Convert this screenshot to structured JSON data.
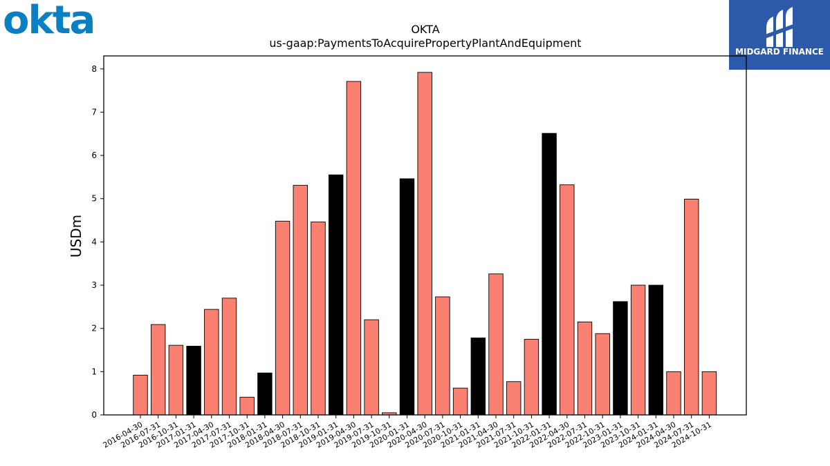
{
  "logos": {
    "left_text": "okta",
    "right_text": "MIDGARD FINANCE"
  },
  "colors": {
    "bar_default": "#fa8072",
    "bar_highlight": "#000000",
    "logo_left": "#0a7fc2",
    "logo_right_bg": "#2c5aa8"
  },
  "chart_data": {
    "type": "bar",
    "title": "OKTA",
    "subtitle": "us-gaap:PaymentsToAcquirePropertyPlantAndEquipment",
    "xlabel": "",
    "ylabel": "USDm",
    "ylim": [
      0,
      8.3
    ],
    "yticks": [
      0,
      1,
      2,
      3,
      4,
      5,
      6,
      7,
      8
    ],
    "grid": false,
    "categories": [
      "2016-04-30",
      "2016-07-31",
      "2016-10-31",
      "2017-01-31",
      "2017-04-30",
      "2017-07-31",
      "2017-10-31",
      "2018-01-31",
      "2018-04-30",
      "2018-07-31",
      "2018-10-31",
      "2019-01-31",
      "2019-04-30",
      "2019-07-31",
      "2019-10-31",
      "2020-01-31",
      "2020-04-30",
      "2020-07-31",
      "2020-10-31",
      "2021-01-31",
      "2021-04-30",
      "2021-07-31",
      "2021-10-31",
      "2022-01-31",
      "2022-04-30",
      "2022-07-31",
      "2022-10-31",
      "2023-01-31",
      "2023-10-31",
      "2024-01-31",
      "2024-04-30",
      "2024-07-31",
      "2024-10-31"
    ],
    "values": [
      0.92,
      2.09,
      1.61,
      1.59,
      2.44,
      2.7,
      0.41,
      0.97,
      4.48,
      5.31,
      4.46,
      5.55,
      7.71,
      2.2,
      0.05,
      5.46,
      7.92,
      2.73,
      0.62,
      1.78,
      3.26,
      0.77,
      1.75,
      6.51,
      5.32,
      2.15,
      1.88,
      2.62,
      3.0,
      3.0,
      1.0,
      4.99,
      1.0
    ],
    "highlight": [
      false,
      false,
      false,
      true,
      false,
      false,
      false,
      true,
      false,
      false,
      false,
      true,
      false,
      false,
      false,
      true,
      false,
      false,
      false,
      true,
      false,
      false,
      false,
      true,
      false,
      false,
      false,
      true,
      false,
      true,
      false,
      false,
      false
    ]
  }
}
